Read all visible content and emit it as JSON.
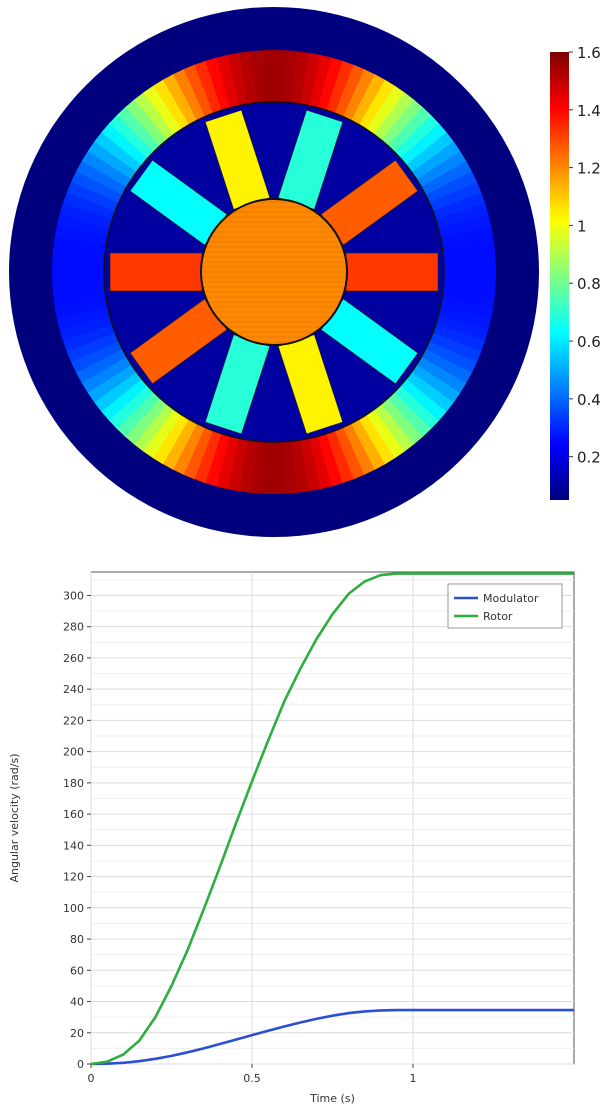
{
  "chart_data": [
    {
      "type": "heatmap",
      "title": "",
      "colorbar": {
        "min": 0.05,
        "max": 1.6,
        "ticks": [
          0.2,
          0.4,
          0.6,
          0.8,
          1,
          1.2,
          1.4,
          1.6
        ],
        "colors": [
          "#00007f",
          "#0000ff",
          "#0080ff",
          "#00ffff",
          "#80ff80",
          "#ffff00",
          "#ff8000",
          "#ff0000",
          "#7f0000"
        ]
      },
      "regions": [
        {
          "region": "outer yoke",
          "value": 0.05
        },
        {
          "region": "stator ring, pole areas",
          "value": 1.55
        },
        {
          "region": "stator ring, flanks",
          "value": 0.75
        },
        {
          "region": "magnet bars",
          "value": 1.15
        },
        {
          "region": "modulator sectors",
          "value": 0.1
        },
        {
          "region": "rotor core",
          "value": 1.2
        }
      ]
    },
    {
      "type": "line",
      "xlabel": "Time (s)",
      "ylabel": "Angular velocity (rad/s)",
      "xlim": [
        0,
        1.5
      ],
      "ylim": [
        0,
        315
      ],
      "xticks": [
        0,
        0.5,
        1
      ],
      "yticks": [
        0,
        20,
        40,
        60,
        80,
        100,
        120,
        140,
        160,
        180,
        200,
        220,
        240,
        260,
        280,
        300
      ],
      "grid": true,
      "legend": "top-right",
      "series": [
        {
          "name": "Modulator",
          "color": "#2a4fd4",
          "x": [
            0,
            0.05,
            0.1,
            0.15,
            0.2,
            0.25,
            0.3,
            0.35,
            0.4,
            0.45,
            0.5,
            0.55,
            0.6,
            0.65,
            0.7,
            0.75,
            0.8,
            0.85,
            0.9,
            0.95,
            1.0,
            1.1,
            1.2,
            1.3,
            1.4,
            1.5
          ],
          "y": [
            0,
            0.2,
            0.8,
            1.8,
            3.3,
            5.2,
            7.5,
            10,
            12.8,
            15.6,
            18.5,
            21.3,
            24,
            26.6,
            28.9,
            30.9,
            32.6,
            33.7,
            34.3,
            34.5,
            34.5,
            34.5,
            34.5,
            34.5,
            34.5,
            34.5
          ]
        },
        {
          "name": "Rotor",
          "color": "#2eae3e",
          "x": [
            0,
            0.05,
            0.1,
            0.15,
            0.2,
            0.25,
            0.3,
            0.35,
            0.4,
            0.45,
            0.5,
            0.55,
            0.6,
            0.65,
            0.7,
            0.75,
            0.8,
            0.85,
            0.9,
            0.95,
            1.0,
            1.1,
            1.2,
            1.3,
            1.4,
            1.5
          ],
          "y": [
            0,
            1.5,
            6,
            15,
            30,
            50,
            73,
            99,
            126,
            154,
            181,
            207,
            232,
            253,
            272,
            288,
            301,
            309,
            313,
            314,
            314,
            314,
            314,
            314,
            314,
            314
          ]
        }
      ]
    }
  ]
}
